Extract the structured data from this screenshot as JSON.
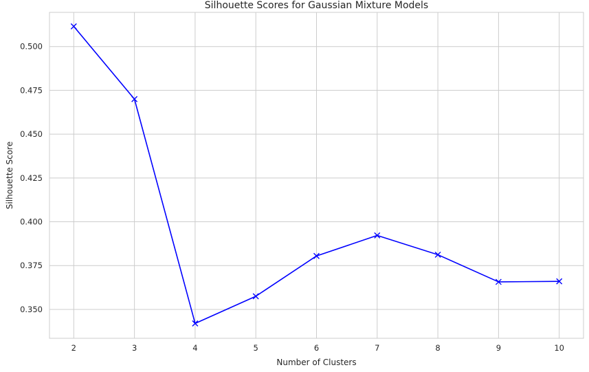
{
  "chart_data": {
    "type": "line",
    "title": "Silhouette Scores for Gaussian Mixture Models",
    "xlabel": "Number of Clusters",
    "ylabel": "Silhouette Score",
    "x": [
      2,
      3,
      4,
      5,
      6,
      7,
      8,
      9,
      10
    ],
    "series": [
      {
        "values": [
          0.5115,
          0.47,
          0.342,
          0.3575,
          0.3805,
          0.3922,
          0.3812,
          0.3657,
          0.366
        ],
        "color": "#0000ff",
        "marker": "x"
      }
    ],
    "xticks": [
      "2",
      "3",
      "4",
      "5",
      "6",
      "7",
      "8",
      "9",
      "10"
    ],
    "yticks": [
      "0.350",
      "0.375",
      "0.400",
      "0.425",
      "0.450",
      "0.475",
      "0.500"
    ],
    "xlim": [
      1.6,
      10.4
    ],
    "ylim": [
      0.3335,
      0.5195
    ],
    "grid": true,
    "style": "whitegrid"
  }
}
